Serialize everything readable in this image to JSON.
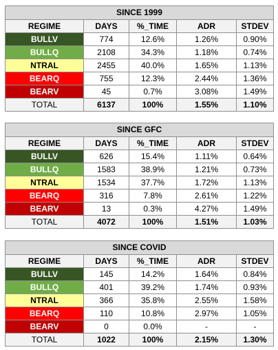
{
  "headers": [
    "REGIME",
    "DAYS",
    "%_TIME",
    "ADR",
    "STDEV"
  ],
  "regime_colors": {
    "BULLV": {
      "bg": "#375623",
      "fg": "#ffffff"
    },
    "BULLQ": {
      "bg": "#70ad47",
      "fg": "#ffffff"
    },
    "NTRAL": {
      "bg": "#ffff99",
      "fg": "#000000"
    },
    "BEARQ": {
      "bg": "#ff0000",
      "fg": "#ffffff"
    },
    "BEARV": {
      "bg": "#c00000",
      "fg": "#ffffff"
    }
  },
  "tables": [
    {
      "title": "SINCE 1999",
      "rows": [
        {
          "regime": "BULLV",
          "days": "774",
          "time": "12.6%",
          "adr": "1.26%",
          "stdev": "0.90%"
        },
        {
          "regime": "BULLQ",
          "days": "2108",
          "time": "34.3%",
          "adr": "1.18%",
          "stdev": "0.74%"
        },
        {
          "regime": "NTRAL",
          "days": "2455",
          "time": "40.0%",
          "adr": "1.65%",
          "stdev": "1.13%"
        },
        {
          "regime": "BEARQ",
          "days": "755",
          "time": "12.3%",
          "adr": "2.44%",
          "stdev": "1.36%"
        },
        {
          "regime": "BEARV",
          "days": "45",
          "time": "0.7%",
          "adr": "3.08%",
          "stdev": "1.49%"
        }
      ],
      "total": {
        "label": "TOTAL",
        "days": "6137",
        "time": "100%",
        "adr": "1.55%",
        "stdev": "1.10%"
      }
    },
    {
      "title": "SINCE GFC",
      "rows": [
        {
          "regime": "BULLV",
          "days": "626",
          "time": "15.4%",
          "adr": "1.11%",
          "stdev": "0.64%"
        },
        {
          "regime": "BULLQ",
          "days": "1583",
          "time": "38.9%",
          "adr": "1.21%",
          "stdev": "0.73%"
        },
        {
          "regime": "NTRAL",
          "days": "1534",
          "time": "37.7%",
          "adr": "1.72%",
          "stdev": "1.13%"
        },
        {
          "regime": "BEARQ",
          "days": "316",
          "time": "7.8%",
          "adr": "2.61%",
          "stdev": "1.22%"
        },
        {
          "regime": "BEARV",
          "days": "13",
          "time": "0.3%",
          "adr": "4.27%",
          "stdev": "1.49%"
        }
      ],
      "total": {
        "label": "TOTAL",
        "days": "4072",
        "time": "100%",
        "adr": "1.51%",
        "stdev": "1.03%"
      }
    },
    {
      "title": "SINCE COVID",
      "rows": [
        {
          "regime": "BULLV",
          "days": "145",
          "time": "14.2%",
          "adr": "1.64%",
          "stdev": "0.84%"
        },
        {
          "regime": "BULLQ",
          "days": "401",
          "time": "39.2%",
          "adr": "1.74%",
          "stdev": "0.93%"
        },
        {
          "regime": "NTRAL",
          "days": "366",
          "time": "35.8%",
          "adr": "2.55%",
          "stdev": "1.58%"
        },
        {
          "regime": "BEARQ",
          "days": "110",
          "time": "10.8%",
          "adr": "2.97%",
          "stdev": "1.05%"
        },
        {
          "regime": "BEARV",
          "days": "0",
          "time": "0.0%",
          "adr": "-",
          "stdev": "-"
        }
      ],
      "total": {
        "label": "TOTAL",
        "days": "1022",
        "time": "100%",
        "adr": "2.15%",
        "stdev": "1.30%"
      }
    }
  ]
}
